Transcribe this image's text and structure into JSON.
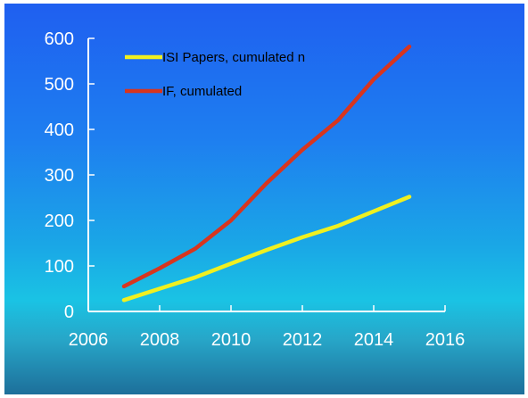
{
  "chart_data": {
    "type": "line",
    "title": "",
    "xlabel": "",
    "ylabel": "",
    "xlim": [
      2006,
      2016
    ],
    "ylim": [
      0,
      600
    ],
    "x_ticks": [
      "2006",
      "2008",
      "2010",
      "2012",
      "2014",
      "2016"
    ],
    "y_ticks": [
      "0",
      "100",
      "200",
      "300",
      "400",
      "500",
      "600"
    ],
    "legend_position": "top-left",
    "grid": false,
    "series": [
      {
        "name": "ISI Papers, cumulated n",
        "color": "#f0f020",
        "x": [
          2007,
          2008,
          2009,
          2010,
          2011,
          2012,
          2013,
          2014,
          2015
        ],
        "y": [
          25,
          50,
          75,
          105,
          135,
          163,
          188,
          220,
          252
        ]
      },
      {
        "name": "IF, cumulated",
        "color": "#d8351e",
        "x": [
          2007,
          2008,
          2009,
          2010,
          2011,
          2012,
          2013,
          2014,
          2015
        ],
        "y": [
          55,
          95,
          138,
          200,
          282,
          355,
          420,
          510,
          582
        ]
      }
    ]
  }
}
